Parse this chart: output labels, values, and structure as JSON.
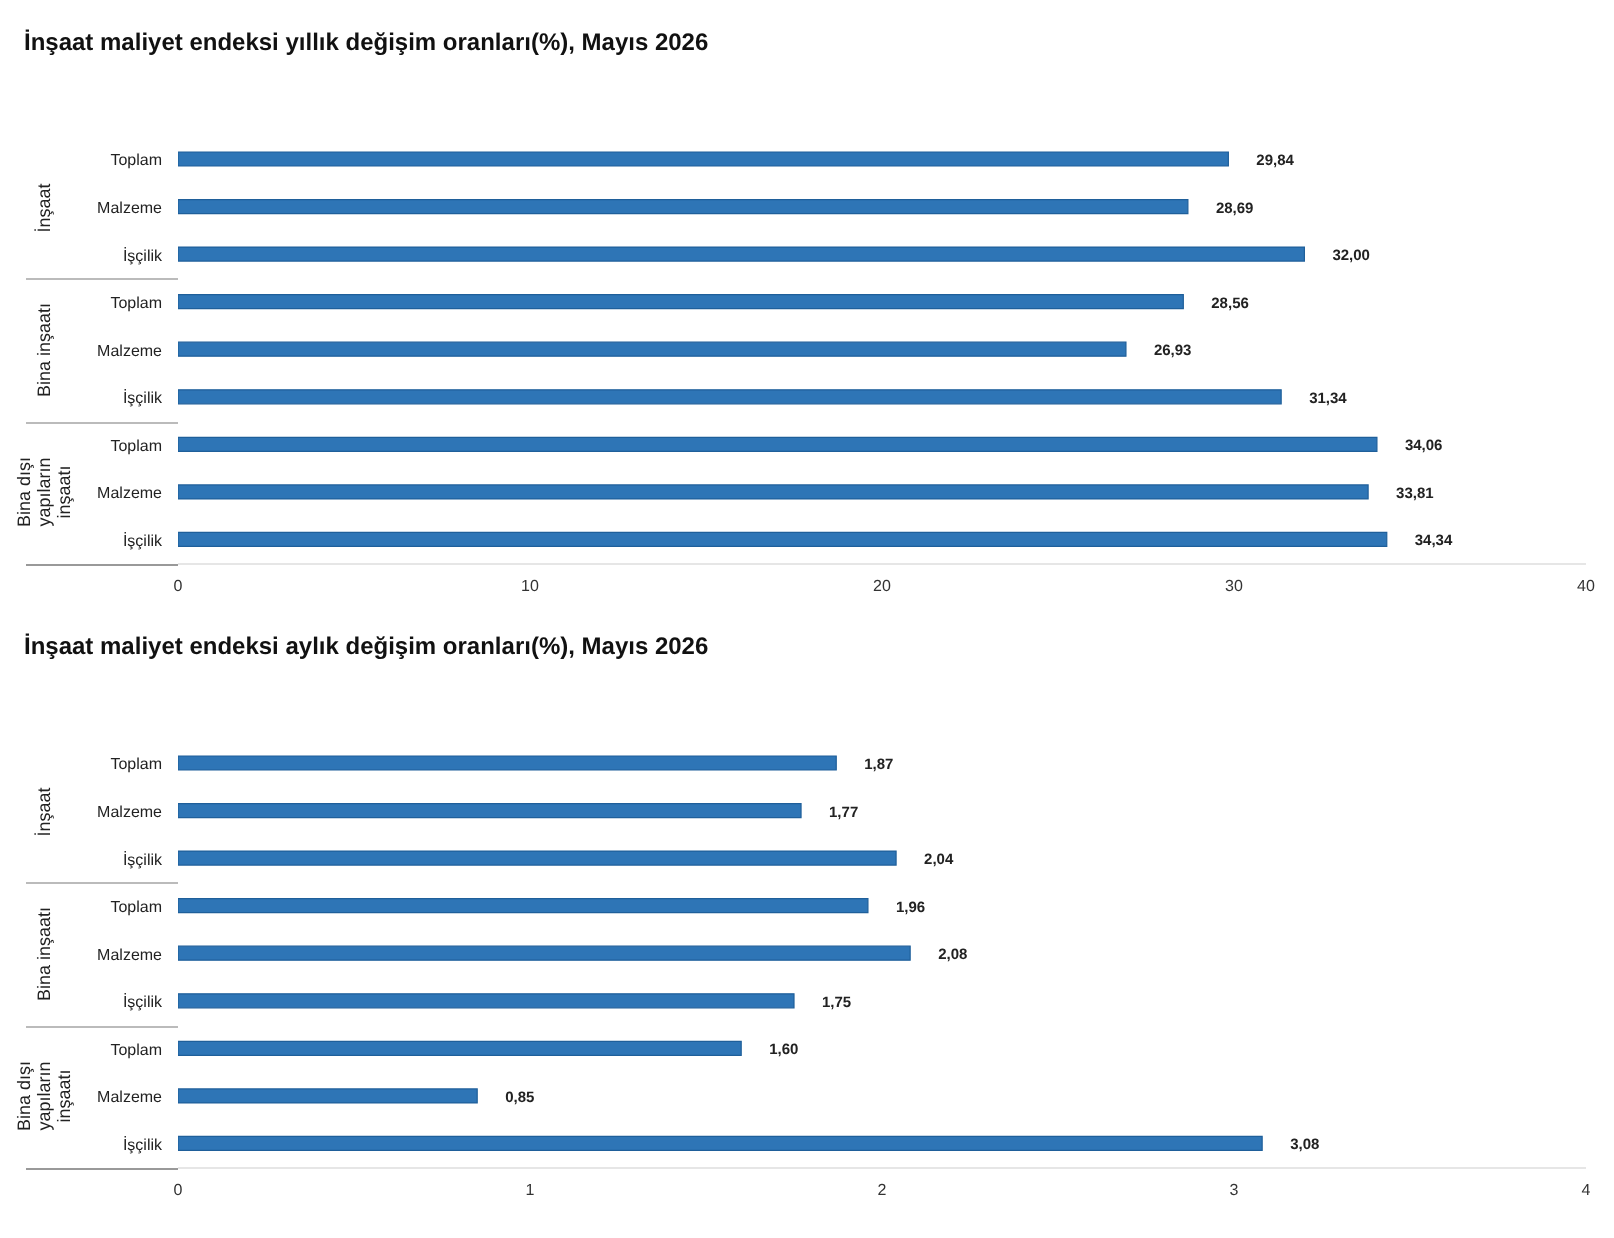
{
  "chart_data": [
    {
      "type": "bar",
      "orientation": "horizontal",
      "title": "İnşaat maliyet endeksi yıllık değişim oranları(%), Mayıs 2026",
      "categories": [
        "Toplam",
        "Malzeme",
        "İşçilik",
        "Toplam",
        "Malzeme",
        "İşçilik",
        "Toplam",
        "Malzeme",
        "İşçilik"
      ],
      "values": [
        29.84,
        28.69,
        32.0,
        28.56,
        26.93,
        31.34,
        34.06,
        33.81,
        34.34
      ],
      "value_labels": [
        "29,84",
        "28,69",
        "32,00",
        "28,56",
        "26,93",
        "31,34",
        "34,06",
        "33,81",
        "34,34"
      ],
      "color": "#2e75b6",
      "xlim": [
        0,
        40
      ],
      "xticks": [
        0,
        10,
        20,
        30,
        40
      ],
      "grid": false,
      "annotations": [
        "İnşaat",
        "Bina inşaatı",
        "Bina dışı yapıların inşaatı"
      ]
    },
    {
      "type": "bar",
      "orientation": "horizontal",
      "title": "İnşaat maliyet endeksi aylık değişim oranları(%), Mayıs 2026",
      "categories": [
        "Toplam",
        "Malzeme",
        "İşçilik",
        "Toplam",
        "Malzeme",
        "İşçilik",
        "Toplam",
        "Malzeme",
        "İşçilik"
      ],
      "values": [
        1.87,
        1.77,
        2.04,
        1.96,
        2.08,
        1.75,
        1.6,
        0.85,
        3.08
      ],
      "value_labels": [
        "1,87",
        "1,77",
        "2,04",
        "1,96",
        "2,08",
        "1,75",
        "1,60",
        "0,85",
        "3,08"
      ],
      "color": "#2e75b6",
      "xlim": [
        0,
        4
      ],
      "xticks": [
        0,
        1,
        2,
        3,
        4
      ],
      "grid": false,
      "annotations": [
        "İnşaat",
        "Bina inşaatı",
        "Bina dışı yapıların inşaatı"
      ]
    }
  ]
}
